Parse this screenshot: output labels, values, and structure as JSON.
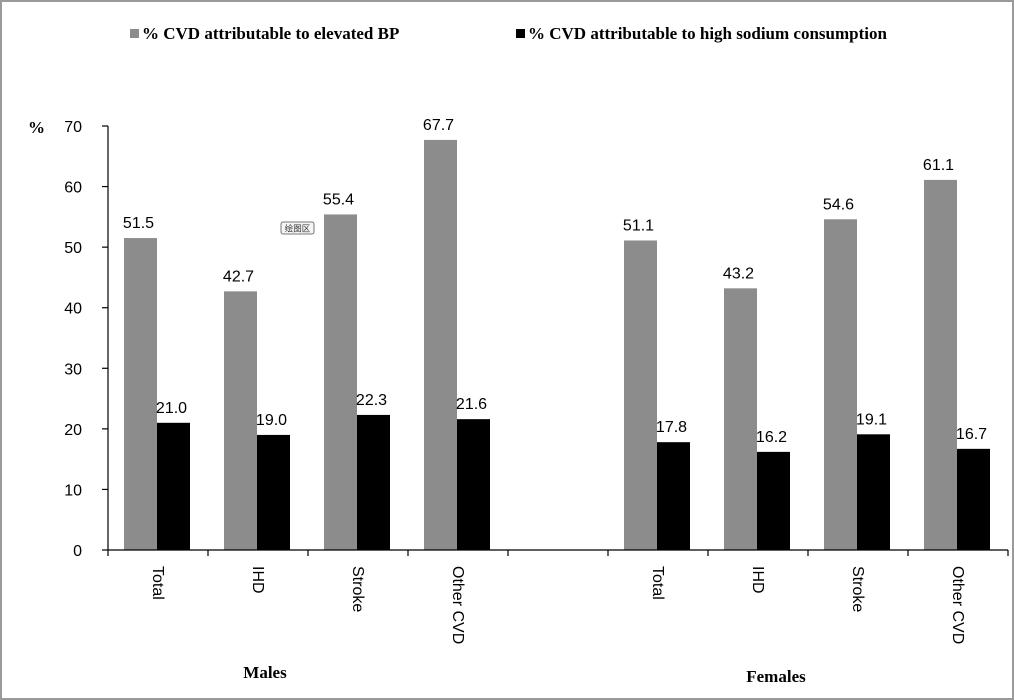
{
  "chart_data": {
    "type": "bar",
    "ylabel": "%",
    "ylim": [
      0,
      70
    ],
    "yticks": [
      "0",
      "10",
      "20",
      "30",
      "40",
      "50",
      "60",
      "70"
    ],
    "grid": false,
    "legend_position": "top",
    "groups": [
      {
        "label": "Males",
        "categories": [
          "Total",
          "IHD",
          "Stroke",
          "Other CVD"
        ]
      },
      {
        "label": "Females",
        "categories": [
          "Total",
          "IHD",
          "Stroke",
          "Other CVD"
        ]
      }
    ],
    "series": [
      {
        "name": "% CVD  attributable to elevated BP",
        "color": "#8c8c8c",
        "values": [
          51.5,
          42.7,
          55.4,
          67.7,
          51.1,
          43.2,
          54.6,
          61.1
        ],
        "labels": [
          "51.5",
          "42.7",
          "55.4",
          "67.7",
          "51.1",
          "43.2",
          "54.6",
          "61.1"
        ]
      },
      {
        "name": "% CVD  attributable to high sodium consumption",
        "color": "#000000",
        "values": [
          21.0,
          19.0,
          22.3,
          21.6,
          17.8,
          16.2,
          19.1,
          16.7
        ],
        "labels": [
          "21.0",
          "19.0",
          "22.3",
          "21.6",
          "17.8",
          "16.2",
          "19.1",
          "16.7"
        ]
      }
    ],
    "annotation": "绘图区"
  }
}
